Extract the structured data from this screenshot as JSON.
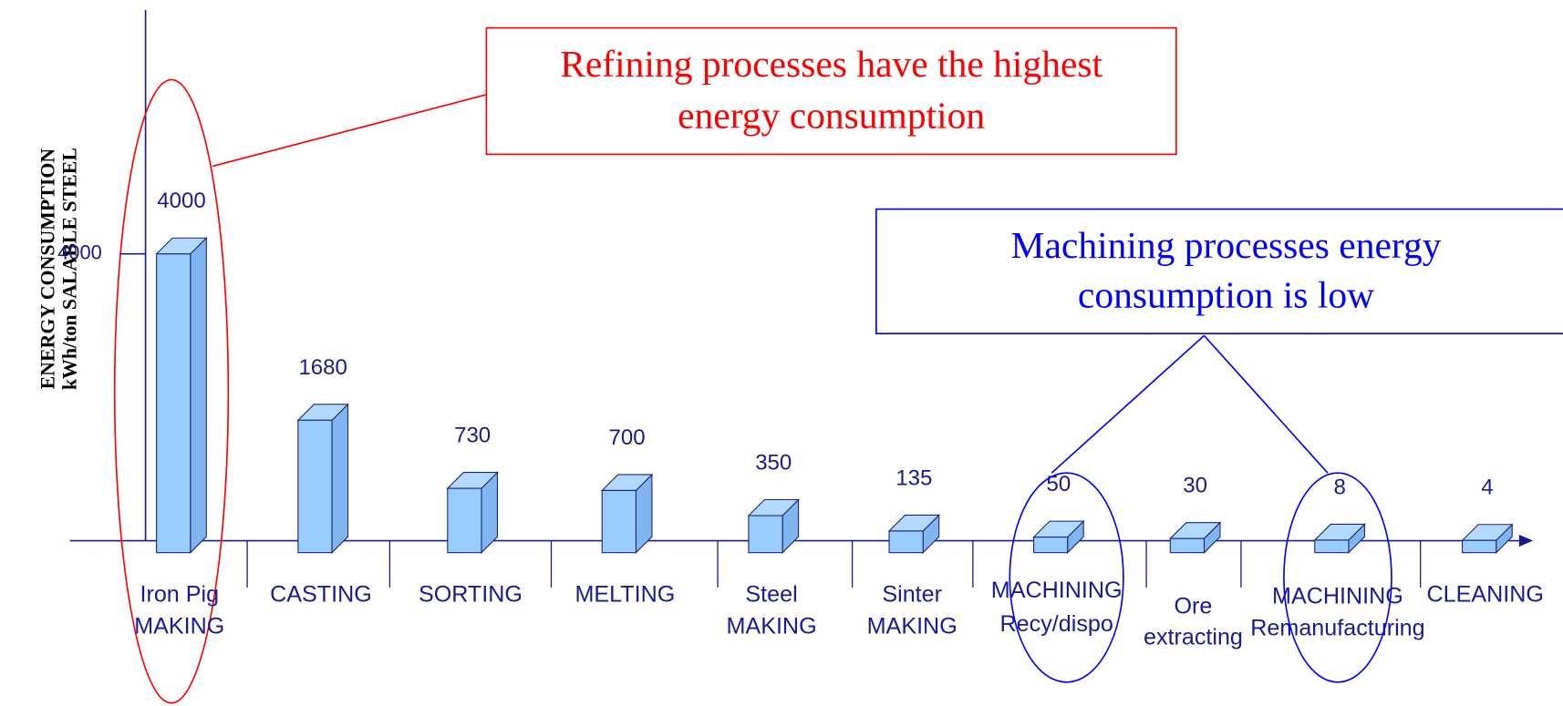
{
  "chart_data": {
    "type": "bar3d",
    "y_label": [
      "ENERGY CONSUMPTION",
      "kWh/ton SALABLE STEEL"
    ],
    "categories": [
      [
        "Iron Pig",
        "MAKING"
      ],
      [
        "CASTING"
      ],
      [
        "SORTING"
      ],
      [
        "MELTING"
      ],
      [
        "Steel",
        "MAKING"
      ],
      [
        "Sinter",
        "MAKING"
      ],
      [
        "MACHINING",
        "Recy/dispo"
      ],
      [
        "Ore",
        "extracting"
      ],
      [
        "MACHINING",
        "Remanufacturing"
      ],
      [
        "CLEANING"
      ]
    ],
    "values": [
      4000,
      1680,
      730,
      700,
      350,
      135,
      50,
      30,
      8,
      4
    ],
    "color": "#99ccff",
    "ylim": [
      0,
      4000
    ],
    "yticks": [
      4000
    ],
    "annotations": [
      {
        "lines": [
          "Refining processes have the highest",
          "energy consumption"
        ],
        "color": "#ff0000"
      },
      {
        "lines": [
          "Machining processes energy",
          "consumption is low"
        ],
        "color": "#0000ff"
      }
    ]
  }
}
